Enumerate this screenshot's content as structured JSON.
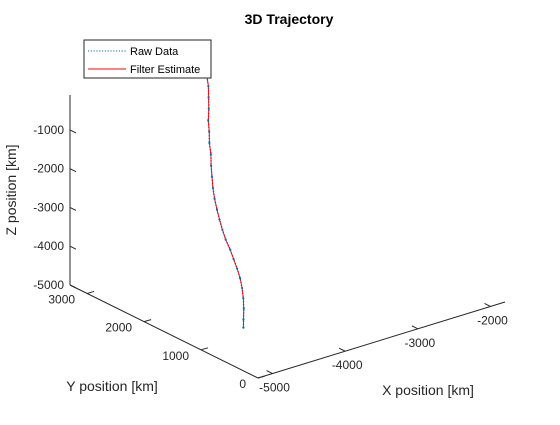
{
  "chart_data": {
    "type": "line",
    "title": "3D Trajectory",
    "xlabel": "X position [km]",
    "ylabel": "Y position [km]",
    "zlabel": "Z position [km]",
    "xlim": [
      -5200,
      -1800
    ],
    "ylim": [
      0,
      3300
    ],
    "zlim": [
      -5000,
      -100
    ],
    "x_ticks": [
      -5000,
      -4000,
      -3000,
      -2000
    ],
    "y_ticks": [
      0,
      1000,
      2000,
      3000
    ],
    "z_ticks": [
      -5000,
      -4000,
      -3000,
      -2000,
      -1000
    ],
    "x_tick_labels": [
      "-5000",
      "-4000",
      "-3000",
      "-2000"
    ],
    "y_tick_labels": [
      "0",
      "1000",
      "2000",
      "3000"
    ],
    "z_tick_labels": [
      "-5000",
      "-4000",
      "-3000",
      "-2000",
      "-1000"
    ],
    "grid": false,
    "legend": "top-left",
    "series": [
      {
        "name": "Raw Data",
        "style": "dotted",
        "color": "#0072BD",
        "points": [
          [
            -4460,
            1200,
            -5000
          ],
          [
            -4420,
            1250,
            -4850
          ],
          [
            -4360,
            1320,
            -4650
          ],
          [
            -4320,
            1380,
            -4450
          ],
          [
            -4290,
            1440,
            -4250
          ],
          [
            -4270,
            1500,
            -4050
          ],
          [
            -4265,
            1560,
            -3850
          ],
          [
            -4265,
            1620,
            -3650
          ],
          [
            -4265,
            1680,
            -3450
          ],
          [
            -4265,
            1760,
            -3250
          ],
          [
            -4255,
            1830,
            -3050
          ],
          [
            -4240,
            1900,
            -2850
          ],
          [
            -4220,
            1970,
            -2650
          ],
          [
            -4190,
            2050,
            -2450
          ],
          [
            -4150,
            2130,
            -2250
          ],
          [
            -4100,
            2210,
            -2050
          ],
          [
            -4050,
            2290,
            -1850
          ],
          [
            -3990,
            2370,
            -1650
          ],
          [
            -3940,
            2460,
            -1450
          ],
          [
            -3880,
            2540,
            -1250
          ],
          [
            -3830,
            2620,
            -1050
          ],
          [
            -3760,
            2700,
            -850
          ],
          [
            -3700,
            2780,
            -650
          ],
          [
            -3640,
            2860,
            -450
          ],
          [
            -3600,
            2940,
            -250
          ]
        ]
      },
      {
        "name": "Filter Estimate",
        "style": "solid",
        "color": "#FF0000",
        "points": [
          [
            -4460,
            1200,
            -5000
          ],
          [
            -4420,
            1250,
            -4850
          ],
          [
            -4360,
            1320,
            -4650
          ],
          [
            -4320,
            1380,
            -4450
          ],
          [
            -4290,
            1440,
            -4250
          ],
          [
            -4270,
            1500,
            -4050
          ],
          [
            -4265,
            1560,
            -3850
          ],
          [
            -4265,
            1620,
            -3650
          ],
          [
            -4265,
            1680,
            -3450
          ],
          [
            -4265,
            1760,
            -3250
          ],
          [
            -4255,
            1830,
            -3050
          ],
          [
            -4240,
            1900,
            -2850
          ],
          [
            -4220,
            1970,
            -2650
          ],
          [
            -4190,
            2050,
            -2450
          ],
          [
            -4150,
            2130,
            -2250
          ],
          [
            -4100,
            2210,
            -2050
          ],
          [
            -4050,
            2290,
            -1850
          ],
          [
            -3990,
            2370,
            -1650
          ],
          [
            -3940,
            2460,
            -1450
          ],
          [
            -3880,
            2540,
            -1250
          ],
          [
            -3830,
            2620,
            -1050
          ],
          [
            -3760,
            2700,
            -850
          ],
          [
            -3700,
            2780,
            -650
          ],
          [
            -3640,
            2860,
            -450
          ],
          [
            -3600,
            2940,
            -250
          ]
        ]
      }
    ]
  }
}
